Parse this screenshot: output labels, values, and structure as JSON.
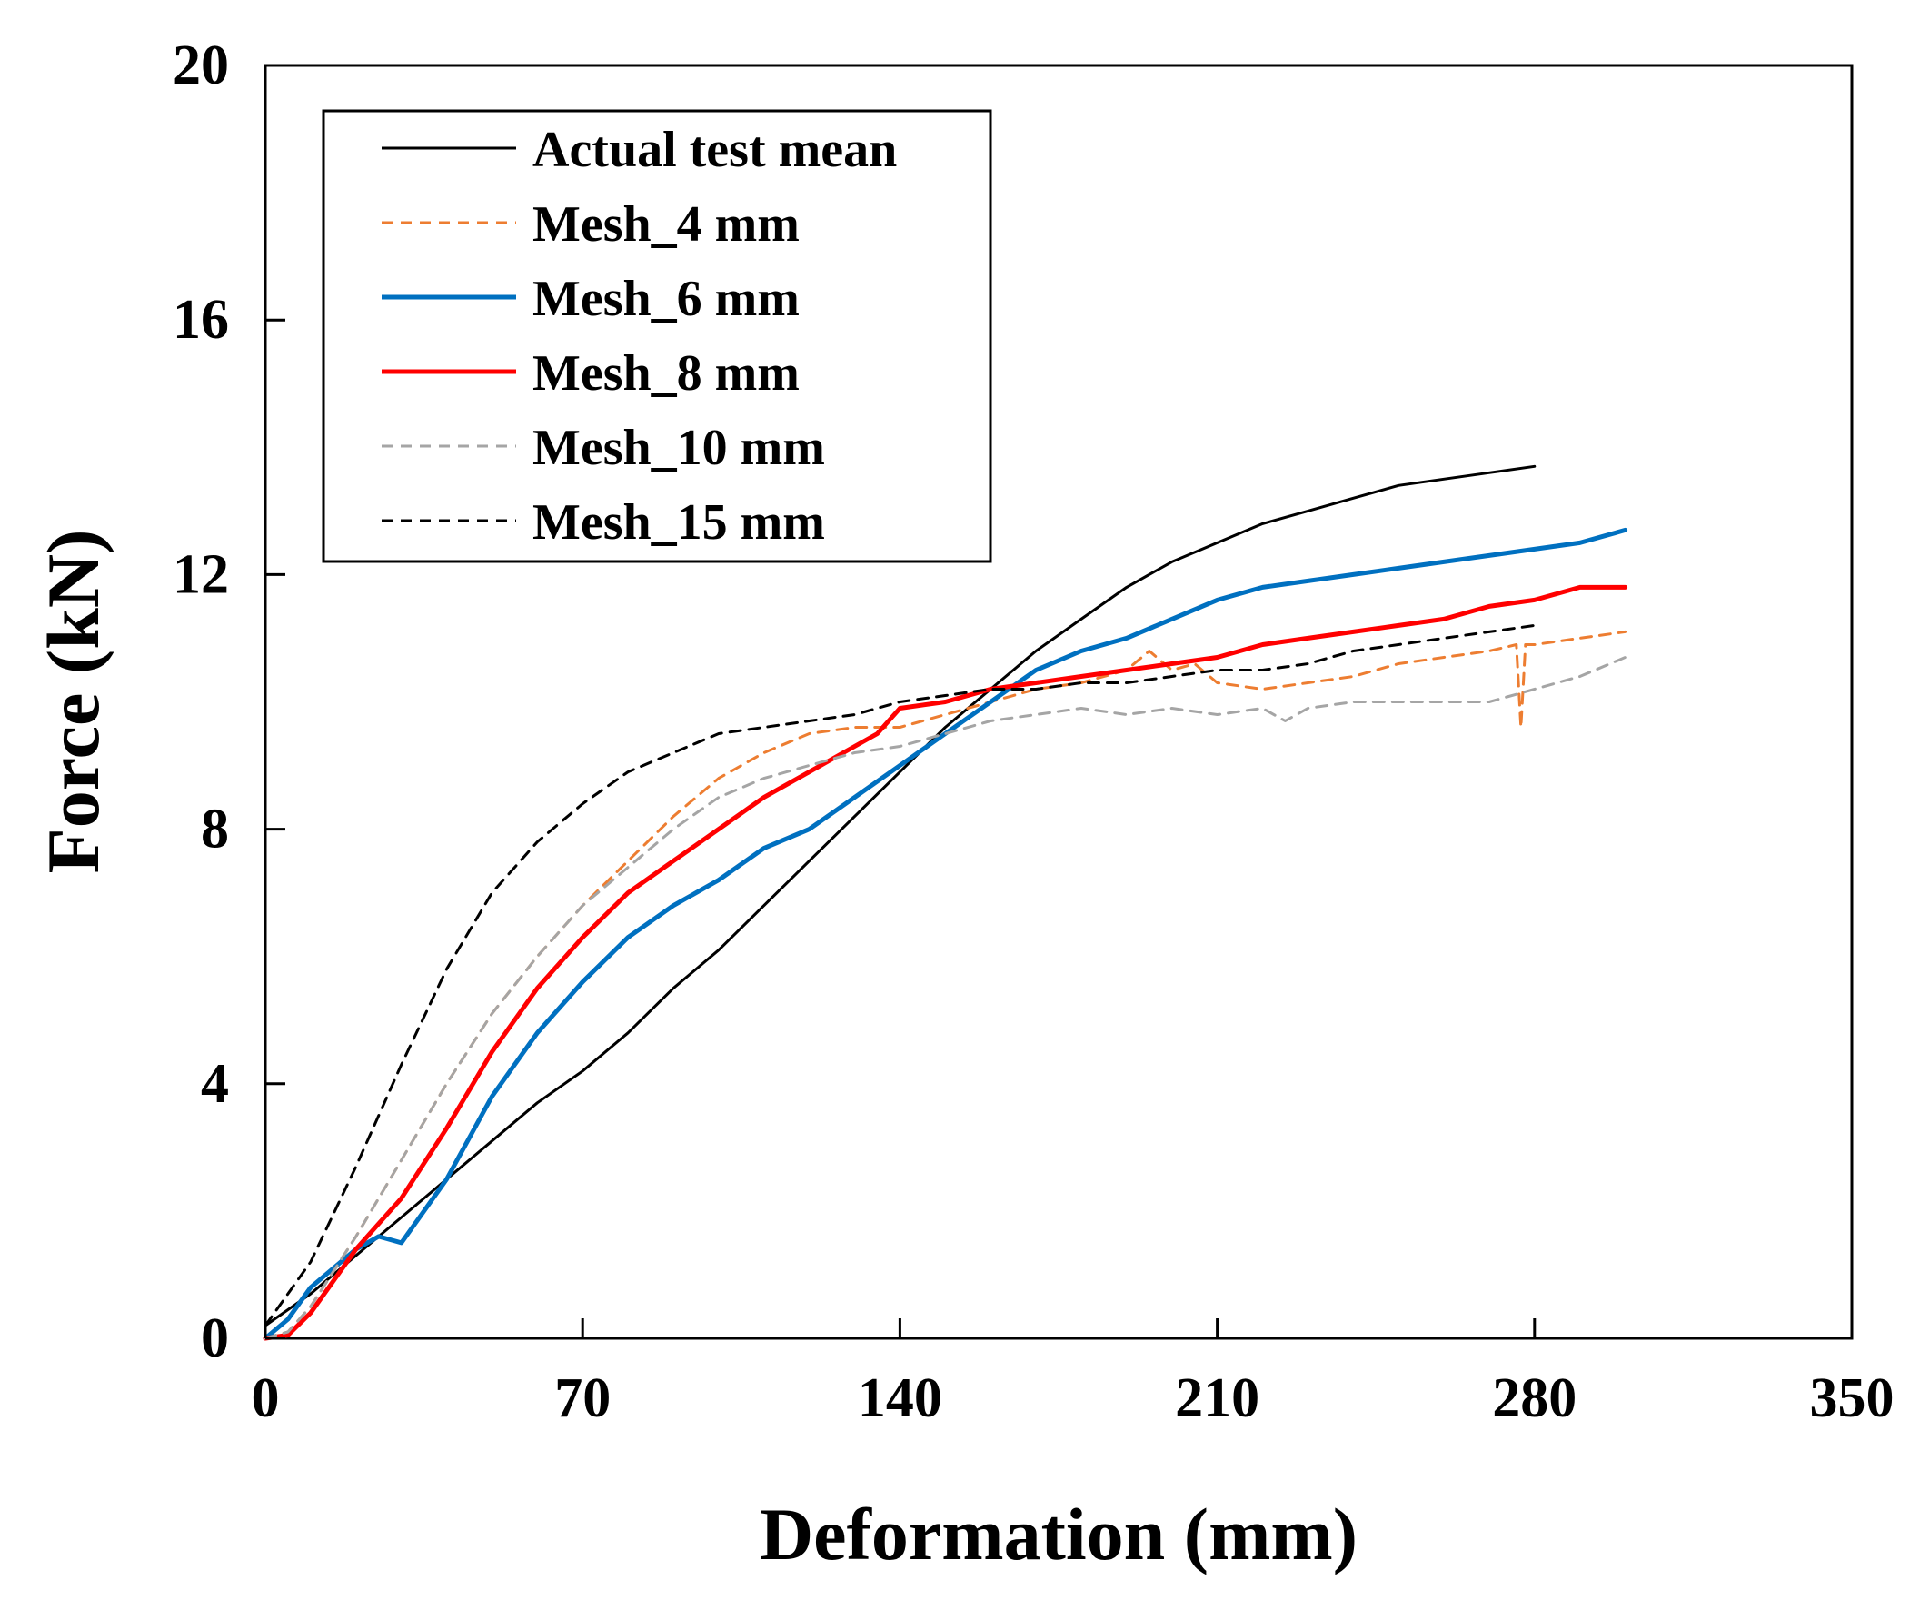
{
  "chart_data": {
    "type": "line",
    "title": "",
    "xlabel": "Deformation (mm)",
    "ylabel": "Force (kN)",
    "xlim": [
      0,
      350
    ],
    "ylim": [
      0,
      20
    ],
    "xticks": [
      0,
      70,
      140,
      210,
      280,
      350
    ],
    "yticks": [
      0,
      4,
      8,
      12,
      16,
      20
    ],
    "grid": false,
    "legend_position": "top-left",
    "series": [
      {
        "name": "Actual test mean",
        "color": "#000000",
        "style": "solid",
        "x": [
          0,
          10,
          20,
          30,
          40,
          50,
          60,
          70,
          80,
          90,
          100,
          110,
          120,
          130,
          140,
          150,
          160,
          170,
          180,
          190,
          200,
          210,
          220,
          230,
          240,
          250,
          260,
          270,
          280
        ],
        "y": [
          0.2,
          0.7,
          1.3,
          1.9,
          2.5,
          3.1,
          3.7,
          4.2,
          4.8,
          5.5,
          6.1,
          6.8,
          7.5,
          8.2,
          8.9,
          9.6,
          10.2,
          10.8,
          11.3,
          11.8,
          12.2,
          12.5,
          12.8,
          13.0,
          13.2,
          13.4,
          13.5,
          13.6,
          13.7
        ]
      },
      {
        "name": "Mesh_4 mm",
        "color": "#ED7D31",
        "style": "dashed",
        "x": [
          0,
          5,
          10,
          20,
          30,
          40,
          50,
          60,
          70,
          80,
          90,
          100,
          110,
          120,
          130,
          140,
          150,
          160,
          170,
          180,
          190,
          195,
          200,
          205,
          210,
          220,
          230,
          240,
          250,
          260,
          270,
          276,
          277,
          278,
          280,
          290,
          300
        ],
        "y": [
          0,
          0.1,
          0.5,
          1.6,
          2.8,
          4.0,
          5.1,
          6.0,
          6.8,
          7.5,
          8.2,
          8.8,
          9.2,
          9.5,
          9.6,
          9.6,
          9.8,
          10.0,
          10.2,
          10.3,
          10.5,
          10.8,
          10.5,
          10.6,
          10.3,
          10.2,
          10.3,
          10.4,
          10.6,
          10.7,
          10.8,
          10.9,
          9.6,
          10.9,
          10.9,
          11.0,
          11.1
        ]
      },
      {
        "name": "Mesh_6 mm",
        "color": "#0070C0",
        "style": "solid",
        "x": [
          0,
          5,
          10,
          20,
          25,
          30,
          40,
          50,
          60,
          70,
          80,
          90,
          100,
          110,
          120,
          130,
          140,
          150,
          160,
          170,
          180,
          190,
          200,
          210,
          220,
          230,
          240,
          250,
          260,
          270,
          280,
          290,
          300
        ],
        "y": [
          0,
          0.3,
          0.8,
          1.4,
          1.6,
          1.5,
          2.5,
          3.8,
          4.8,
          5.6,
          6.3,
          6.8,
          7.2,
          7.7,
          8.0,
          8.5,
          9.0,
          9.5,
          10.0,
          10.5,
          10.8,
          11.0,
          11.3,
          11.6,
          11.8,
          11.9,
          12.0,
          12.1,
          12.2,
          12.3,
          12.4,
          12.5,
          12.7
        ]
      },
      {
        "name": "Mesh_8 mm",
        "color": "#FF0000",
        "style": "solid",
        "x": [
          0,
          5,
          10,
          20,
          25,
          30,
          40,
          50,
          60,
          70,
          80,
          90,
          100,
          110,
          120,
          130,
          135,
          140,
          150,
          160,
          170,
          180,
          190,
          200,
          210,
          220,
          230,
          240,
          250,
          260,
          270,
          280,
          290,
          300
        ],
        "y": [
          0,
          0.05,
          0.4,
          1.4,
          1.8,
          2.2,
          3.3,
          4.5,
          5.5,
          6.3,
          7.0,
          7.5,
          8.0,
          8.5,
          8.9,
          9.3,
          9.5,
          9.9,
          10.0,
          10.2,
          10.3,
          10.4,
          10.5,
          10.6,
          10.7,
          10.9,
          11.0,
          11.1,
          11.2,
          11.3,
          11.5,
          11.6,
          11.8,
          11.8
        ]
      },
      {
        "name": "Mesh_10 mm",
        "color": "#A5A5A5",
        "style": "dashed",
        "x": [
          0,
          5,
          10,
          20,
          30,
          40,
          50,
          60,
          70,
          80,
          90,
          100,
          110,
          120,
          130,
          140,
          150,
          160,
          170,
          180,
          190,
          200,
          210,
          220,
          225,
          230,
          240,
          250,
          260,
          270,
          280,
          290,
          300
        ],
        "y": [
          0,
          0.1,
          0.5,
          1.6,
          2.8,
          4.0,
          5.1,
          6.0,
          6.8,
          7.4,
          8.0,
          8.5,
          8.8,
          9.0,
          9.2,
          9.3,
          9.5,
          9.7,
          9.8,
          9.9,
          9.8,
          9.9,
          9.8,
          9.9,
          9.7,
          9.9,
          10.0,
          10.0,
          10.0,
          10.0,
          10.2,
          10.4,
          10.7
        ]
      },
      {
        "name": "Mesh_15 mm",
        "color": "#000000",
        "style": "dashed",
        "x": [
          0,
          10,
          20,
          30,
          40,
          50,
          60,
          70,
          80,
          90,
          100,
          110,
          120,
          130,
          140,
          150,
          160,
          170,
          180,
          190,
          200,
          210,
          220,
          230,
          240,
          250,
          260,
          270,
          280
        ],
        "y": [
          0.2,
          1.2,
          2.7,
          4.3,
          5.8,
          7.0,
          7.8,
          8.4,
          8.9,
          9.2,
          9.5,
          9.6,
          9.7,
          9.8,
          10.0,
          10.1,
          10.2,
          10.2,
          10.3,
          10.3,
          10.4,
          10.5,
          10.5,
          10.6,
          10.8,
          10.9,
          11.0,
          11.1,
          11.2
        ]
      }
    ]
  }
}
